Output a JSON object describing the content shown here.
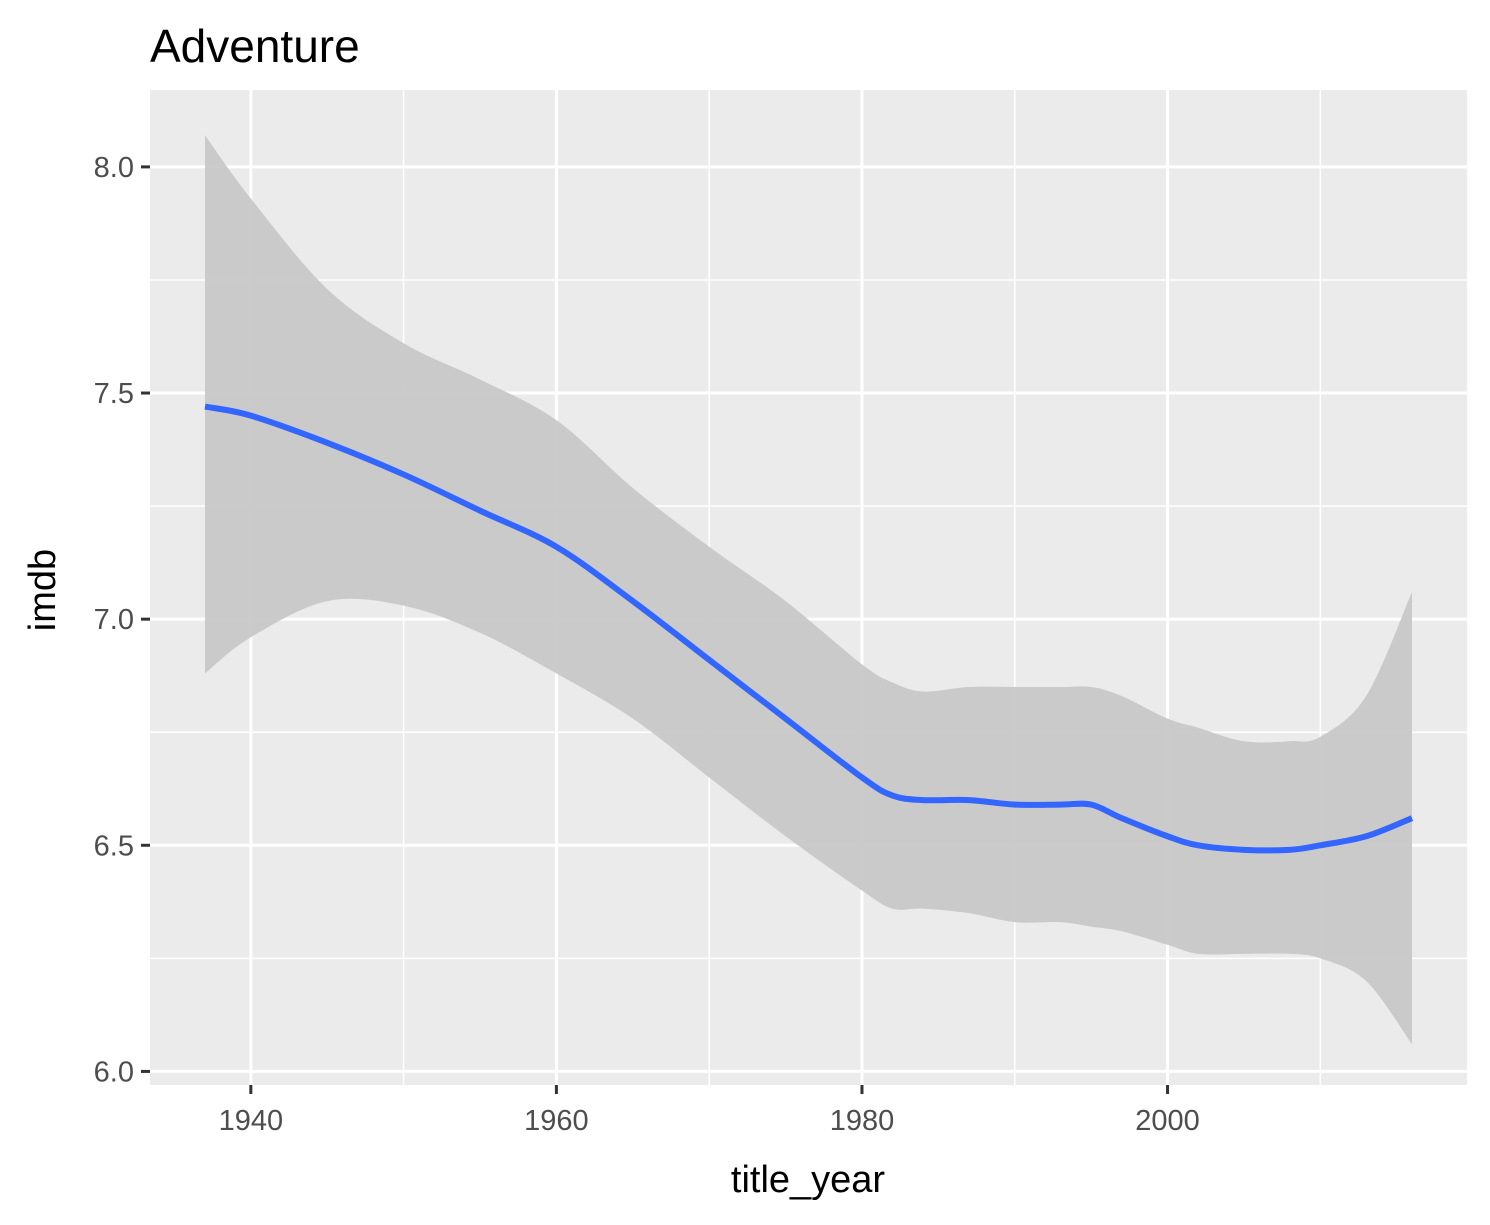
{
  "chart_data": {
    "type": "line",
    "title": "Adventure",
    "xlabel": "title_year",
    "ylabel": "imdb",
    "xlim": [
      1933.4,
      2019.6
    ],
    "ylim": [
      5.97,
      8.17
    ],
    "x_ticks": [
      1940,
      1960,
      1980,
      2000
    ],
    "y_ticks": [
      6.0,
      6.5,
      7.0,
      7.5,
      8.0
    ],
    "x_tick_labels": [
      "1940",
      "1960",
      "1980",
      "2000"
    ],
    "y_tick_labels": [
      "6.0",
      "6.5",
      "7.0",
      "7.5",
      "8.0"
    ],
    "grid": true,
    "legend": "none",
    "colors": {
      "panel_background": "#ebebeb",
      "grid_line": "#ffffff",
      "line": "#3366ff",
      "ribbon": "#c8c8c8"
    },
    "series": [
      {
        "type": "smooth",
        "x": [
          1937,
          1940,
          1945,
          1950,
          1955,
          1960,
          1965,
          1970,
          1975,
          1980,
          1982,
          1984,
          1987,
          1990,
          1993,
          1995,
          1997,
          2000,
          2002,
          2005,
          2008,
          2010,
          2013,
          2016
        ],
        "y": [
          7.47,
          7.45,
          7.39,
          7.32,
          7.24,
          7.16,
          7.04,
          6.91,
          6.78,
          6.65,
          6.61,
          6.6,
          6.6,
          6.59,
          6.59,
          6.59,
          6.56,
          6.52,
          6.5,
          6.49,
          6.49,
          6.5,
          6.52,
          6.56
        ],
        "ymin": [
          6.88,
          6.96,
          7.04,
          7.03,
          6.97,
          6.88,
          6.78,
          6.65,
          6.52,
          6.4,
          6.36,
          6.36,
          6.35,
          6.33,
          6.33,
          6.32,
          6.31,
          6.28,
          6.26,
          6.26,
          6.26,
          6.25,
          6.2,
          6.06
        ],
        "ymax": [
          8.07,
          7.93,
          7.73,
          7.61,
          7.53,
          7.44,
          7.29,
          7.16,
          7.04,
          6.9,
          6.86,
          6.84,
          6.85,
          6.85,
          6.85,
          6.85,
          6.83,
          6.78,
          6.76,
          6.73,
          6.73,
          6.74,
          6.83,
          7.06
        ]
      }
    ]
  }
}
